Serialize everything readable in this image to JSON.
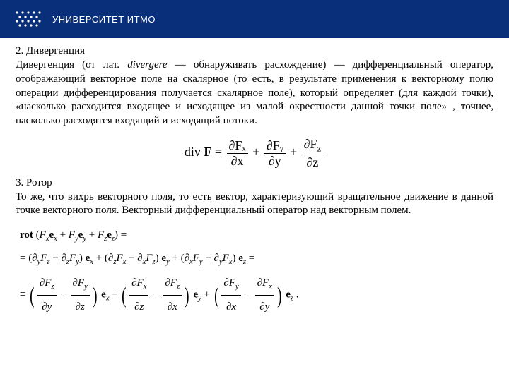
{
  "header": {
    "bg_color": "#0a2f7a",
    "logo_text": "УНИВЕРСИТЕТ ИТМО",
    "logo_fontsize": 13,
    "dot_color": "#ffffff"
  },
  "body": {
    "fontsize": 15,
    "text_color": "#000000"
  },
  "section2": {
    "title": "2. Дивергенция",
    "para": "Дивергенция (от лат. divergere — обнаруживать расхождение) — дифференциальный оператор, отображающий векторное поле на скалярное (то есть, в результате применения к векторному полю операции дифференцирования получается скалярное поле), который определяет (для каждой точки), «насколько расходится входящее и исходящее из малой окрестности данной точки поле» , точнее, насколько расходятся входящий и исходящий потоки."
  },
  "div_formula": {
    "prefix": "div ",
    "vector": "F",
    "eq": " = ",
    "terms": [
      {
        "num": "∂Fₓ",
        "den": "∂x"
      },
      {
        "num": "∂Fᵧ",
        "den": "∂y"
      },
      {
        "num": "∂F_z",
        "den": "∂z"
      }
    ],
    "fontsize": 18
  },
  "section3": {
    "title": "3. Ротор",
    "para": "То же, что вихрь векторного поля, то есть вектор, характеризующий вращательное движение в данной точке векторного поля. Векторный дифференциальный оператор над векторным полем."
  },
  "rot_formula": {
    "fontsize": 15,
    "line1_a": "rot (",
    "line1_b": ") =",
    "line2_a": "= (∂",
    "line2_b": " − ∂",
    "line2_c": ") ",
    "line2_d": " + (∂",
    "line2_e": " − ∂",
    "line2_f": ") ",
    "line2_g": " + (∂",
    "line2_h": " − ∂",
    "line2_i": ") ",
    "line2_j": " =",
    "line3_prefix": "≡ ",
    "fracs": [
      {
        "num": "∂F_z",
        "den": "∂y"
      },
      {
        "num": "∂F_y",
        "den": "∂z"
      },
      {
        "num": "∂F_x",
        "den": "∂z"
      },
      {
        "num": "∂F_z",
        "den": "∂x"
      },
      {
        "num": "∂F_y",
        "den": "∂x"
      },
      {
        "num": "∂F_x",
        "den": "∂y"
      }
    ],
    "end": " ."
  }
}
